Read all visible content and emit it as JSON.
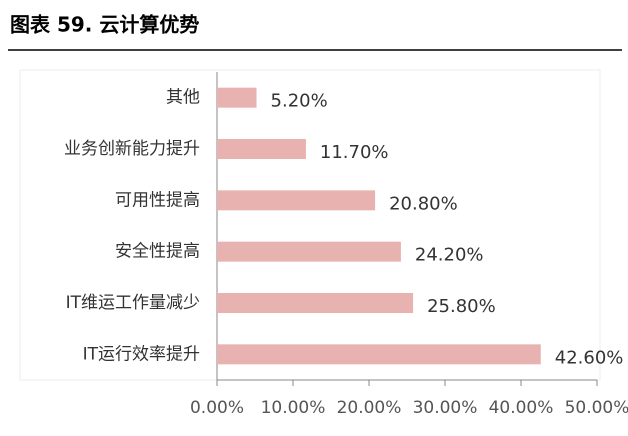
{
  "chart_data": {
    "type": "bar",
    "orientation": "horizontal",
    "title": "图表 59. 云计算优势",
    "categories": [
      "其他",
      "业务创新能力提升",
      "可用性提高",
      "安全性提高",
      "IT维运工作量减少",
      "IT运行效率提升"
    ],
    "values": [
      5.2,
      11.7,
      20.8,
      24.2,
      25.8,
      42.6
    ],
    "value_labels": [
      "5.20%",
      "11.70%",
      "20.80%",
      "24.20%",
      "25.80%",
      "42.60%"
    ],
    "color": "#e8b2b0",
    "xlim": [
      0,
      50
    ],
    "xticks": [
      {
        "value": 0,
        "label": "0.00%"
      },
      {
        "value": 10,
        "label": "10.00%"
      },
      {
        "value": 20,
        "label": "20.00%"
      },
      {
        "value": 30,
        "label": "30.00%"
      },
      {
        "value": 40,
        "label": "40.00%"
      },
      {
        "value": 50,
        "label": "50.00%"
      }
    ]
  }
}
